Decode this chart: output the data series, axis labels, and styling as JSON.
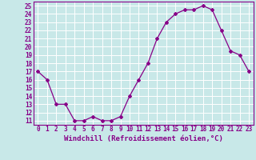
{
  "x": [
    0,
    1,
    2,
    3,
    4,
    5,
    6,
    7,
    8,
    9,
    10,
    11,
    12,
    13,
    14,
    15,
    16,
    17,
    18,
    19,
    20,
    21,
    22,
    23
  ],
  "y": [
    17,
    16,
    13,
    13,
    11,
    11,
    11.5,
    11,
    11,
    11.5,
    14,
    16,
    18,
    21,
    23,
    24,
    24.5,
    24.5,
    25,
    24.5,
    22,
    19.5,
    19,
    17
  ],
  "line_color": "#880088",
  "marker": "D",
  "marker_size": 2.0,
  "bg_color": "#c8e8e8",
  "grid_color": "#ffffff",
  "xlabel": "Windchill (Refroidissement éolien,°C)",
  "xlabel_color": "#880088",
  "ylim": [
    10.5,
    25.5
  ],
  "yticks": [
    11,
    12,
    13,
    14,
    15,
    16,
    17,
    18,
    19,
    20,
    21,
    22,
    23,
    24,
    25
  ],
  "xticks": [
    0,
    1,
    2,
    3,
    4,
    5,
    6,
    7,
    8,
    9,
    10,
    11,
    12,
    13,
    14,
    15,
    16,
    17,
    18,
    19,
    20,
    21,
    22,
    23
  ],
  "tick_color": "#880088",
  "border_color": "#880088",
  "tick_fontsize": 5.5,
  "xlabel_fontsize": 6.5
}
